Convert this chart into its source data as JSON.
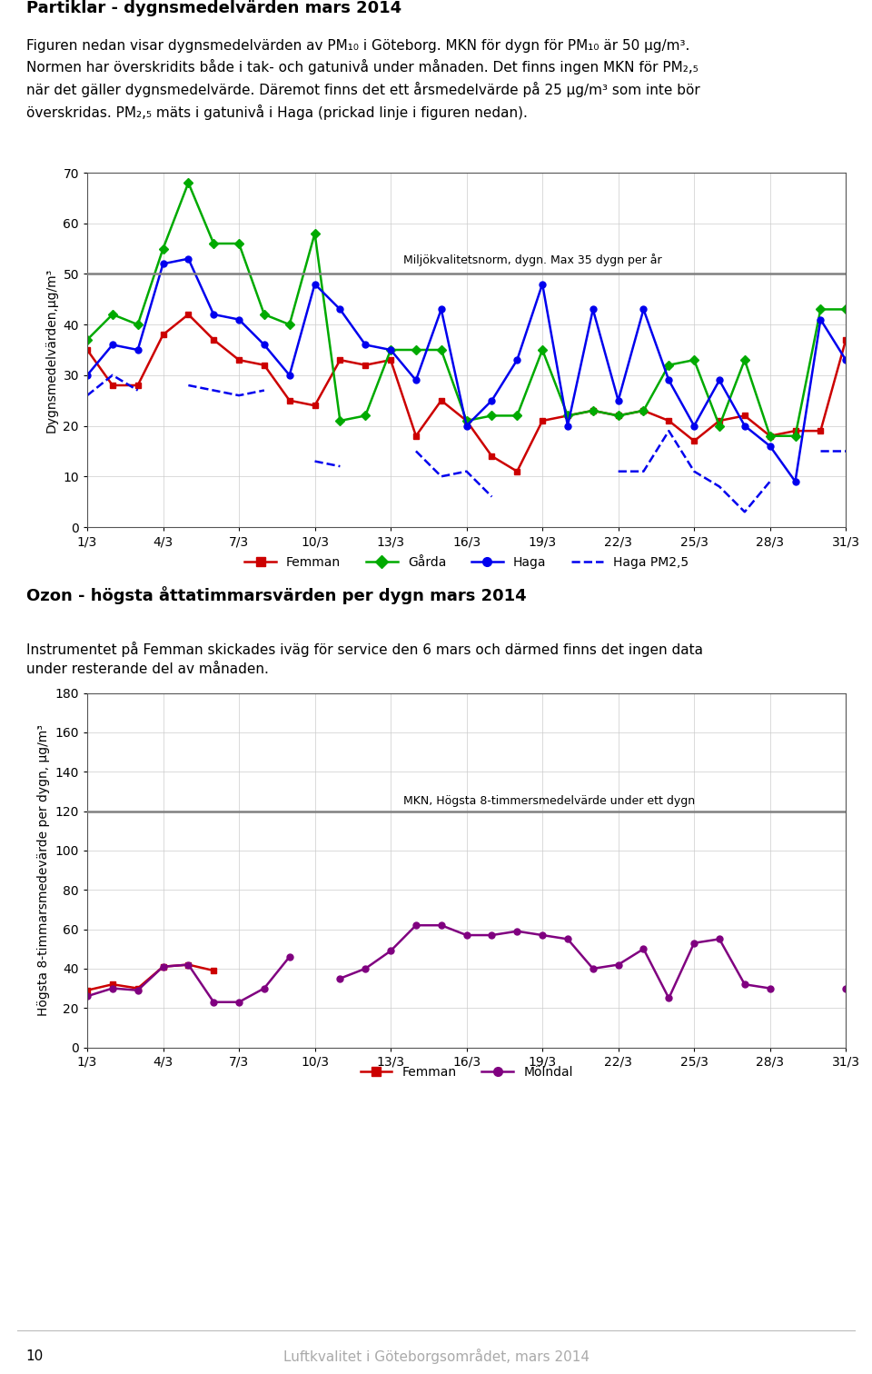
{
  "title1": "Partiklar - dygnsmedelvärden mars 2014",
  "title2": "Ozon - högsta åttatimmarsvärden per dygn mars 2014",
  "text2_line1": "Instrumentet på Femman skickades iväg för service den 6 mars och därmed finns det ingen data",
  "text2_line2": "under resterande del av månaden.",
  "footer_num": "10",
  "footer_text": "Luftkvalitet i Göteborgsområdet, mars 2014",
  "x_labels": [
    "1/3",
    "4/3",
    "7/3",
    "10/3",
    "13/3",
    "16/3",
    "19/3",
    "22/3",
    "25/3",
    "28/3",
    "31/3"
  ],
  "x_ticks": [
    1,
    4,
    7,
    10,
    13,
    16,
    19,
    22,
    25,
    28,
    31
  ],
  "chart1": {
    "ylabel": "Dygnsmedelvärden,μg/m³",
    "ylim": [
      0,
      70
    ],
    "yticks": [
      0,
      10,
      20,
      30,
      40,
      50,
      60,
      70
    ],
    "mkn_line": 50,
    "mkn_label": "Miljökvalitetsnorm, dygn. Max 35 dygn per år",
    "femman_color": "#cc0000",
    "garda_color": "#00aa00",
    "haga_color": "#0000ee",
    "femman": [
      35,
      28,
      28,
      38,
      42,
      37,
      33,
      32,
      25,
      24,
      33,
      32,
      33,
      18,
      25,
      21,
      14,
      11,
      21,
      22,
      23,
      22,
      23,
      21,
      17,
      21,
      22,
      18,
      19,
      19,
      37
    ],
    "garda": [
      37,
      42,
      40,
      55,
      68,
      56,
      56,
      42,
      40,
      58,
      21,
      22,
      35,
      35,
      35,
      21,
      22,
      22,
      35,
      22,
      23,
      22,
      23,
      32,
      33,
      20,
      33,
      18,
      18,
      43,
      43
    ],
    "haga": [
      30,
      36,
      35,
      52,
      53,
      42,
      41,
      36,
      30,
      48,
      43,
      36,
      35,
      29,
      43,
      20,
      25,
      33,
      48,
      20,
      43,
      25,
      43,
      29,
      20,
      29,
      20,
      16,
      9,
      41,
      33
    ],
    "hagapm": [
      26,
      30,
      27,
      null,
      28,
      27,
      26,
      27,
      null,
      13,
      12,
      null,
      null,
      15,
      10,
      11,
      6,
      null,
      null,
      11,
      null,
      11,
      11,
      19,
      11,
      8,
      3,
      9,
      null,
      15,
      15
    ]
  },
  "chart2": {
    "ylabel": "Högsta 8-timmarsmedevärde per dygn, μg/m³",
    "ylim": [
      0,
      180
    ],
    "yticks": [
      0,
      20,
      40,
      60,
      80,
      100,
      120,
      140,
      160,
      180
    ],
    "mkn_line": 120,
    "mkn_label": "MKN, Högsta 8-timmersmedelvärde under ett dygn",
    "femman_color": "#cc0000",
    "molndal_color": "#800080",
    "femman": [
      29,
      32,
      30,
      41,
      42,
      39,
      null,
      null,
      null,
      null,
      null,
      null,
      null,
      null,
      null,
      null,
      null,
      null,
      null,
      null,
      null,
      null,
      null,
      null,
      null,
      null,
      null,
      null,
      null,
      null,
      null
    ],
    "molndal": [
      26,
      30,
      29,
      41,
      42,
      23,
      23,
      30,
      46,
      null,
      35,
      40,
      49,
      62,
      62,
      57,
      57,
      59,
      57,
      55,
      40,
      42,
      50,
      25,
      53,
      55,
      32,
      30,
      null,
      null,
      30
    ]
  }
}
